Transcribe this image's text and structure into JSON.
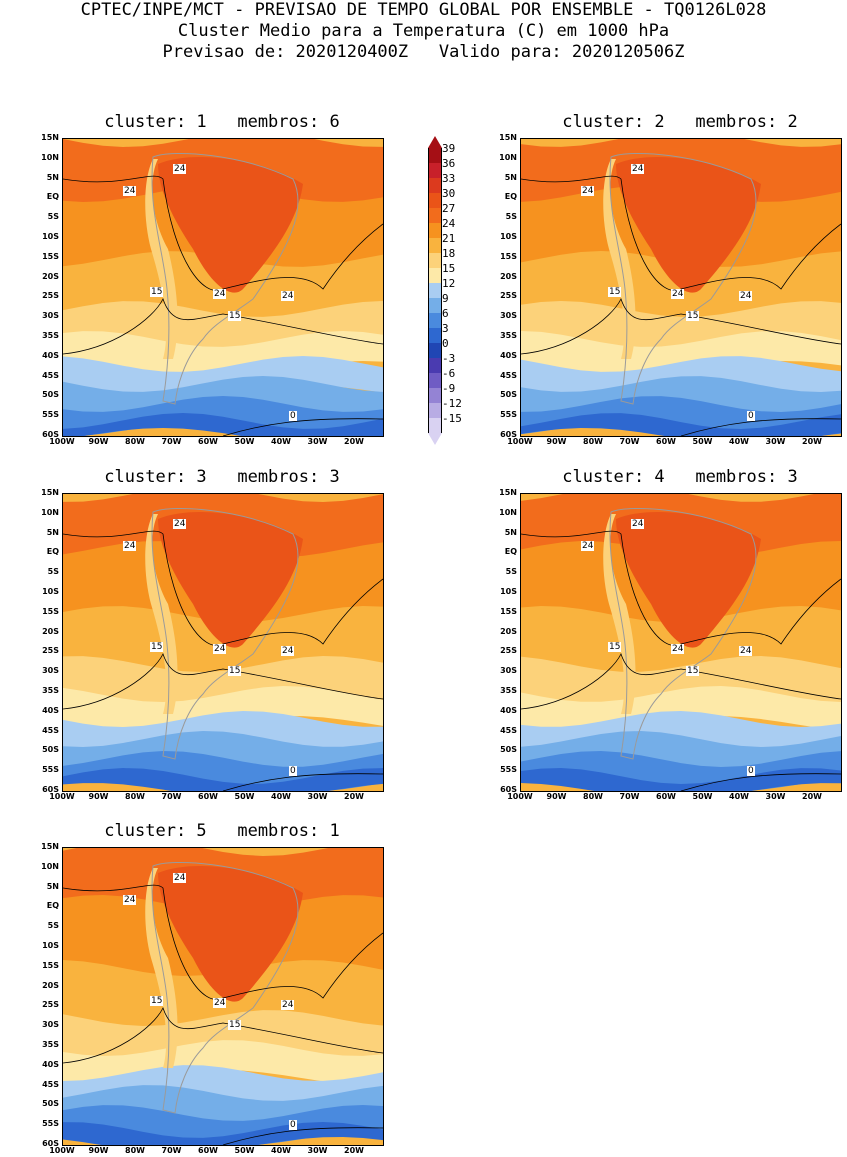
{
  "header": {
    "line1": "CPTEC/INPE/MCT - PREVISAO DE TEMPO GLOBAL POR ENSEMBLE - TQ0126L028",
    "line2": "Cluster Medio para a Temperatura (C) em 1000 hPa",
    "line3": "Previsao de: 2020120400Z   Valido para: 2020120506Z"
  },
  "panels": [
    {
      "title": "cluster: 1   membros: 6"
    },
    {
      "title": "cluster: 2   membros: 2"
    },
    {
      "title": "cluster: 3   membros: 3"
    },
    {
      "title": "cluster: 4   membros: 3"
    },
    {
      "title": "cluster: 5   membros: 1"
    }
  ],
  "axes": {
    "lat": [
      "15N",
      "10N",
      "5N",
      "EQ",
      "5S",
      "10S",
      "15S",
      "20S",
      "25S",
      "30S",
      "35S",
      "40S",
      "45S",
      "50S",
      "55S",
      "60S"
    ],
    "lon": [
      "100W",
      "90W",
      "80W",
      "70W",
      "60W",
      "50W",
      "40W",
      "30W",
      "20W"
    ]
  },
  "contour_labels": {
    "warm": "24",
    "mid": "15",
    "cold": "0"
  },
  "colorbar": {
    "levels": [
      "39",
      "36",
      "33",
      "30",
      "27",
      "24",
      "21",
      "18",
      "15",
      "12",
      "9",
      "6",
      "3",
      "0",
      "-3",
      "-6",
      "-9",
      "-12",
      "-15"
    ],
    "colors": [
      "#a50f15",
      "#c8202a",
      "#dc3a1e",
      "#ea5418",
      "#f26c1c",
      "#f6921f",
      "#f9b33e",
      "#fcd27a",
      "#fde9a8",
      "#a9cdf2",
      "#74aee8",
      "#4a8ade",
      "#2e68d0",
      "#2046b4",
      "#4a3bb0",
      "#6f5cc4",
      "#9483d4",
      "#b8ace4",
      "#d9d2f2"
    ]
  }
}
